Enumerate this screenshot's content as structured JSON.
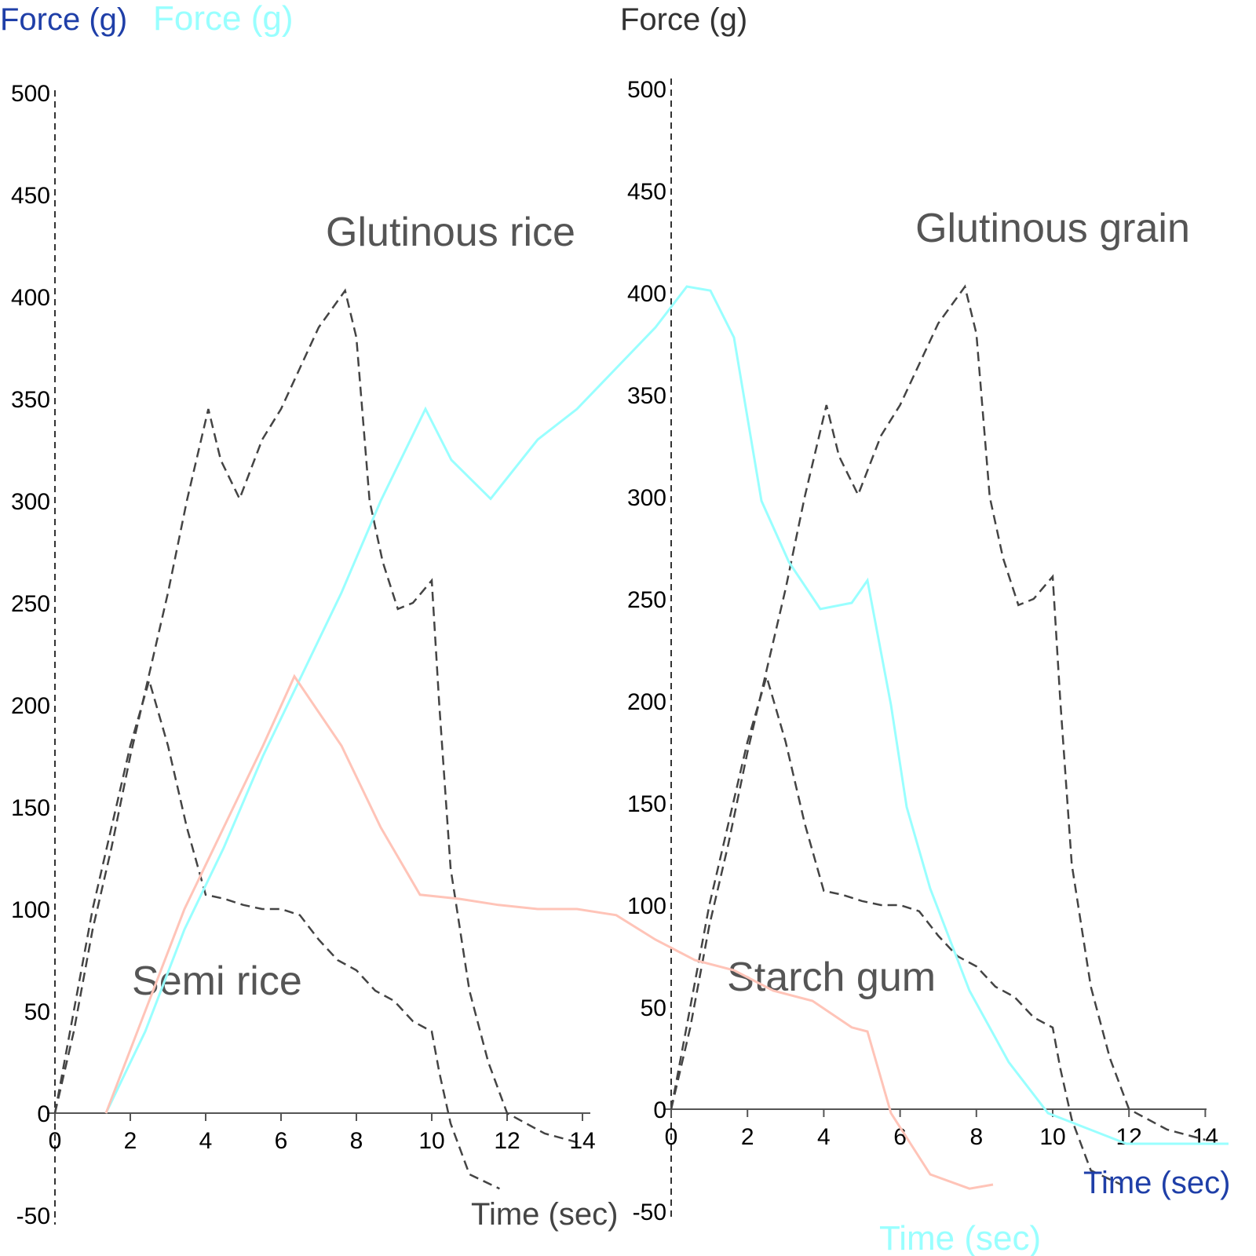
{
  "chart_data": [
    {
      "type": "line",
      "panel": "left",
      "xlabel": "Time (sec)",
      "ylabel": "Force (g)",
      "xlim": [
        0,
        14
      ],
      "ylim": [
        -50,
        500
      ],
      "xticks": [
        0,
        2,
        4,
        6,
        8,
        10,
        12,
        14
      ],
      "yticks": [
        -50,
        0,
        50,
        100,
        150,
        200,
        250,
        300,
        350,
        400,
        450,
        500
      ],
      "annotations": [
        {
          "text": "Glutinous rice",
          "t": 10.5,
          "f": 425
        },
        {
          "text": "Semi rice",
          "t": 4.3,
          "f": 58
        }
      ],
      "color": "#444444",
      "line_style": "dashed",
      "series": [
        {
          "x": [
            0,
            0.5,
            1,
            1.5,
            2,
            2.5,
            3,
            3.5,
            4.07,
            4.4,
            4.9,
            5.5,
            6,
            6.5,
            7,
            7.7,
            8,
            8.35,
            8.7,
            9.1,
            9.5,
            10,
            10.2,
            10.5,
            11,
            11.5,
            12,
            13,
            14
          ],
          "y": [
            0,
            40,
            90,
            130,
            175,
            215,
            255,
            300,
            345,
            320,
            301,
            330,
            345,
            365,
            385,
            403,
            380,
            300,
            270,
            247,
            250,
            261,
            200,
            120,
            60,
            25,
            0,
            -10,
            -15
          ]
        },
        {
          "x": [
            0,
            0.5,
            1,
            1.5,
            2,
            2.5,
            3,
            3.5,
            4,
            4.5,
            5,
            5.5,
            6,
            6.5,
            7,
            7.5,
            8,
            8.5,
            9,
            9.5,
            10,
            10.2,
            10.5,
            11,
            11.8
          ],
          "y": [
            0,
            50,
            100,
            140,
            180,
            212,
            180,
            140,
            107,
            105,
            102,
            100,
            100,
            97,
            85,
            75,
            70,
            60,
            55,
            45,
            40,
            20,
            -5,
            -30,
            -37
          ]
        }
      ]
    },
    {
      "type": "line",
      "panel": "right",
      "xlabel": "Time (sec)",
      "ylabel": "Force (g)",
      "xlim": [
        0,
        14
      ],
      "ylim": [
        -50,
        500
      ],
      "xticks": [
        0,
        2,
        4,
        6,
        8,
        10,
        12,
        14
      ],
      "yticks": [
        -50,
        0,
        50,
        100,
        150,
        200,
        250,
        300,
        350,
        400,
        450,
        500
      ],
      "annotations": [
        {
          "text": "Glutinous grain",
          "t": 10,
          "f": 425
        },
        {
          "text": "Starch gum",
          "t": 4.2,
          "f": 58
        }
      ],
      "color": "#444444",
      "line_style": "dashed",
      "series": [
        {
          "x": [
            0,
            0.5,
            1,
            1.5,
            2,
            2.5,
            3,
            3.5,
            4.07,
            4.4,
            4.9,
            5.5,
            6,
            6.5,
            7,
            7.7,
            8,
            8.35,
            8.7,
            9.1,
            9.5,
            10,
            10.2,
            10.5,
            11,
            11.5,
            12,
            13,
            14
          ],
          "y": [
            0,
            40,
            90,
            130,
            175,
            215,
            255,
            300,
            345,
            320,
            301,
            330,
            345,
            365,
            385,
            403,
            380,
            300,
            270,
            247,
            250,
            261,
            200,
            120,
            60,
            25,
            0,
            -10,
            -15
          ]
        },
        {
          "x": [
            0,
            0.5,
            1,
            1.5,
            2,
            2.5,
            3,
            3.5,
            4,
            4.5,
            5,
            5.5,
            6,
            6.5,
            7,
            7.5,
            8,
            8.5,
            9,
            9.5,
            10,
            10.2,
            10.5,
            11,
            11.8
          ],
          "y": [
            0,
            50,
            100,
            140,
            180,
            212,
            180,
            140,
            107,
            105,
            102,
            100,
            100,
            97,
            85,
            75,
            70,
            60,
            55,
            45,
            40,
            20,
            -5,
            -30,
            -37
          ]
        }
      ]
    },
    {
      "type": "line",
      "panel": "overlay",
      "xlabel": "Time (sec)",
      "ylabel": "Force (g)",
      "xlim": [
        0,
        14.3
      ],
      "ylim": [
        -50,
        500
      ],
      "series": [
        {
          "color": "#99ffff",
          "x": [
            0,
            0.5,
            1,
            1.5,
            2,
            2.5,
            3,
            3.5,
            4.07,
            4.4,
            4.9,
            5.5,
            6,
            6.5,
            7,
            7.4,
            7.7,
            8,
            8.35,
            8.7,
            9.1,
            9.5,
            9.7,
            10,
            10.2,
            10.5,
            11,
            11.5,
            12,
            13,
            14.3
          ],
          "y": [
            0,
            40,
            90,
            130,
            175,
            215,
            255,
            300,
            345,
            320,
            301,
            330,
            345,
            365,
            385,
            405,
            403,
            380,
            300,
            270,
            247,
            250,
            261,
            200,
            150,
            110,
            60,
            25,
            0,
            -15,
            -15
          ]
        },
        {
          "color": "#ffc4b8",
          "x": [
            0,
            0.5,
            1,
            1.5,
            2,
            2.4,
            3,
            3.5,
            4,
            4.5,
            5,
            5.5,
            6,
            6.5,
            7,
            7.5,
            8,
            8.5,
            9,
            9.5,
            9.7,
            10,
            10.5,
            11,
            11.3
          ],
          "y": [
            0,
            50,
            100,
            140,
            180,
            214,
            180,
            140,
            107,
            105,
            102,
            100,
            100,
            97,
            85,
            75,
            70,
            60,
            55,
            42,
            40,
            0,
            -30,
            -37,
            -35
          ]
        }
      ]
    }
  ]
}
